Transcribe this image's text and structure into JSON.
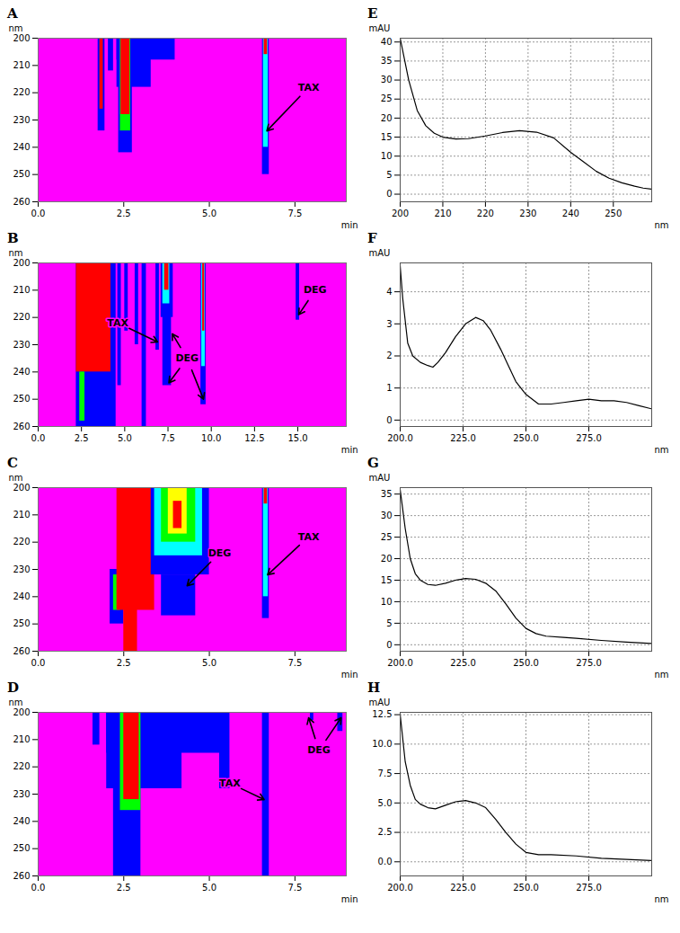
{
  "chart_data": [
    {
      "title": "A",
      "type": "heatmap",
      "xlabel": "min",
      "ylabel": "nm",
      "xlim": [
        0,
        9
      ],
      "ylim": [
        200,
        260
      ],
      "xticks": [
        {
          "value": 0,
          "label": "0.0"
        },
        {
          "value": 2.5,
          "label": "2.5"
        },
        {
          "value": 5,
          "label": "5.0"
        },
        {
          "value": 7.5,
          "label": "7.5"
        }
      ],
      "yticks": [
        200,
        210,
        220,
        230,
        240,
        250,
        260
      ],
      "colors": [
        "#ff00ff",
        "#0000ff",
        "#00ffff",
        "#00ff00",
        "#ffff00",
        "#ff0000"
      ],
      "cells": [
        [
          1.75,
          1.95,
          200,
          234,
          1
        ],
        [
          1.8,
          1.9,
          200,
          226,
          5
        ],
        [
          2.05,
          2.2,
          200,
          212,
          1
        ],
        [
          2.3,
          4.0,
          200,
          208,
          1
        ],
        [
          2.3,
          3.3,
          200,
          218,
          1
        ],
        [
          2.35,
          2.75,
          200,
          242,
          1
        ],
        [
          2.4,
          2.7,
          200,
          234,
          3
        ],
        [
          2.42,
          2.68,
          200,
          228,
          5
        ],
        [
          6.55,
          6.75,
          200,
          250,
          1
        ],
        [
          6.58,
          6.72,
          200,
          240,
          2
        ],
        [
          6.6,
          6.7,
          200,
          206,
          5
        ]
      ],
      "annotations": [
        {
          "text": "TAX",
          "x": 7.9,
          "y": 218,
          "to": [
            [
              6.68,
              234
            ]
          ]
        }
      ]
    },
    {
      "title": "B",
      "type": "heatmap",
      "xlabel": "min",
      "ylabel": "nm",
      "xlim": [
        0,
        17.8
      ],
      "ylim": [
        200,
        260
      ],
      "xticks": [
        {
          "value": 0,
          "label": "0.0"
        },
        {
          "value": 2.5,
          "label": "2.5"
        },
        {
          "value": 5,
          "label": "5.0"
        },
        {
          "value": 7.5,
          "label": "7.5"
        },
        {
          "value": 10,
          "label": "10.0"
        },
        {
          "value": 12.5,
          "label": "12.5"
        },
        {
          "value": 15,
          "label": "15.0"
        }
      ],
      "yticks": [
        200,
        210,
        220,
        230,
        240,
        250,
        260
      ],
      "colors": [
        "#ff00ff",
        "#0000ff",
        "#00ffff",
        "#00ff00",
        "#ffff00",
        "#ff0000"
      ],
      "cells": [
        [
          2.2,
          4.5,
          200,
          260,
          1
        ],
        [
          2.2,
          4.2,
          200,
          240,
          5
        ],
        [
          2.4,
          2.7,
          240,
          258,
          3
        ],
        [
          4.6,
          4.8,
          200,
          245,
          1
        ],
        [
          5.0,
          5.2,
          200,
          225,
          1
        ],
        [
          5.6,
          5.8,
          200,
          230,
          1
        ],
        [
          6.0,
          6.25,
          200,
          260,
          1
        ],
        [
          6.8,
          7.0,
          200,
          232,
          1
        ],
        [
          7.1,
          7.8,
          200,
          220,
          1
        ],
        [
          7.2,
          7.7,
          200,
          245,
          1
        ],
        [
          7.2,
          7.6,
          200,
          215,
          2
        ],
        [
          7.3,
          7.55,
          200,
          210,
          5
        ],
        [
          9.4,
          9.7,
          200,
          252,
          1
        ],
        [
          9.45,
          9.65,
          200,
          238,
          2
        ],
        [
          9.5,
          9.62,
          200,
          225,
          5
        ],
        [
          14.9,
          15.1,
          200,
          221,
          1
        ]
      ],
      "annotations": [
        {
          "text": "TAX",
          "x": 4.6,
          "y": 222,
          "to": [
            [
              6.9,
              229
            ]
          ]
        },
        {
          "text": "DEG",
          "x": 8.6,
          "y": 235,
          "to": [
            [
              7.55,
              244
            ],
            [
              7.75,
              226
            ],
            [
              9.55,
              250
            ]
          ]
        },
        {
          "text": "DEG",
          "x": 16.0,
          "y": 210,
          "to": [
            [
              15.05,
              219
            ]
          ]
        }
      ]
    },
    {
      "title": "C",
      "type": "heatmap",
      "xlabel": "min",
      "ylabel": "nm",
      "xlim": [
        0,
        9
      ],
      "ylim": [
        200,
        260
      ],
      "xticks": [
        {
          "value": 0,
          "label": "0.0"
        },
        {
          "value": 2.5,
          "label": "2.5"
        },
        {
          "value": 5,
          "label": "5.0"
        },
        {
          "value": 7.5,
          "label": "7.5"
        }
      ],
      "yticks": [
        200,
        210,
        220,
        230,
        240,
        250,
        260
      ],
      "colors": [
        "#ff00ff",
        "#0000ff",
        "#00ffff",
        "#00ff00",
        "#ffff00",
        "#ff0000"
      ],
      "cells": [
        [
          2.1,
          2.5,
          230,
          250,
          1
        ],
        [
          2.2,
          2.4,
          232,
          245,
          3
        ],
        [
          2.3,
          3.4,
          200,
          245,
          5
        ],
        [
          2.5,
          2.9,
          200,
          260,
          5
        ],
        [
          3.3,
          5.0,
          200,
          232,
          1
        ],
        [
          3.6,
          4.6,
          232,
          247,
          1
        ],
        [
          3.4,
          4.8,
          200,
          225,
          2
        ],
        [
          3.6,
          4.6,
          200,
          220,
          3
        ],
        [
          3.8,
          4.35,
          200,
          217,
          4
        ],
        [
          3.95,
          4.2,
          205,
          215,
          5
        ],
        [
          6.55,
          6.75,
          200,
          248,
          1
        ],
        [
          6.58,
          6.72,
          200,
          240,
          2
        ],
        [
          6.6,
          6.7,
          200,
          206,
          5
        ]
      ],
      "annotations": [
        {
          "text": "DEG",
          "x": 5.3,
          "y": 224,
          "to": [
            [
              4.35,
              236
            ]
          ]
        },
        {
          "text": "TAX",
          "x": 7.9,
          "y": 218,
          "to": [
            [
              6.7,
              232
            ]
          ]
        }
      ]
    },
    {
      "title": "D",
      "type": "heatmap",
      "xlabel": "min",
      "ylabel": "nm",
      "xlim": [
        0,
        9
      ],
      "ylim": [
        200,
        260
      ],
      "xticks": [
        {
          "value": 0,
          "label": "0.0"
        },
        {
          "value": 2.5,
          "label": "2.5"
        },
        {
          "value": 5,
          "label": "5.0"
        },
        {
          "value": 7.5,
          "label": "7.5"
        }
      ],
      "yticks": [
        200,
        210,
        220,
        230,
        240,
        250,
        260
      ],
      "colors": [
        "#ff00ff",
        "#0000ff",
        "#00ffff",
        "#00ff00",
        "#ffff00",
        "#ff0000"
      ],
      "cells": [
        [
          1.6,
          1.8,
          200,
          212,
          1
        ],
        [
          2.0,
          5.5,
          200,
          215,
          1
        ],
        [
          2.0,
          4.2,
          200,
          228,
          1
        ],
        [
          2.2,
          3.0,
          200,
          260,
          1
        ],
        [
          2.4,
          3.0,
          200,
          236,
          3
        ],
        [
          2.5,
          2.95,
          200,
          232,
          5
        ],
        [
          5.3,
          5.6,
          200,
          228,
          1
        ],
        [
          6.55,
          6.75,
          200,
          260,
          1
        ],
        [
          7.95,
          8.05,
          200,
          203,
          1
        ],
        [
          8.75,
          8.9,
          200,
          207,
          1
        ]
      ],
      "annotations": [
        {
          "text": "TAX",
          "x": 5.6,
          "y": 226,
          "to": [
            [
              6.6,
              232
            ]
          ]
        },
        {
          "text": "DEG",
          "x": 8.2,
          "y": 214,
          "to": [
            [
              7.9,
              202
            ],
            [
              8.85,
              202
            ]
          ]
        }
      ]
    },
    {
      "title": "E",
      "type": "line",
      "xlabel": "nm",
      "ylabel": "mAU",
      "color": "#000000",
      "grid": true,
      "xlim": [
        200,
        259
      ],
      "ylim": [
        -2,
        41
      ],
      "xticks": [
        200,
        210,
        220,
        230,
        240,
        250
      ],
      "yticks": [
        0,
        5,
        10,
        15,
        20,
        25,
        30,
        35,
        40
      ],
      "x": [
        200,
        202,
        204,
        206,
        208,
        210,
        213,
        216,
        220,
        224,
        228,
        232,
        236,
        240,
        243,
        246,
        249,
        252,
        255,
        257,
        259
      ],
      "values": [
        41,
        30,
        22,
        18,
        16,
        15,
        14.5,
        14.6,
        15.3,
        16.2,
        16.7,
        16.3,
        14.8,
        11,
        8.5,
        6,
        4.2,
        3,
        2.1,
        1.6,
        1.3
      ]
    },
    {
      "title": "F",
      "type": "line",
      "xlabel": "nm",
      "ylabel": "mAU",
      "color": "#000000",
      "grid": true,
      "xlim": [
        200,
        300
      ],
      "ylim": [
        -0.2,
        4.9
      ],
      "xticks": [
        {
          "value": 200,
          "label": "200.0"
        },
        {
          "value": 225,
          "label": "225.0"
        },
        {
          "value": 250,
          "label": "250.0"
        },
        {
          "value": 275,
          "label": "275.0"
        }
      ],
      "yticks": [
        0,
        1,
        2,
        3,
        4
      ],
      "x": [
        200,
        201,
        203,
        205,
        208,
        211,
        213,
        215,
        218,
        222,
        226,
        230,
        233,
        236,
        240,
        243,
        246,
        250,
        255,
        260,
        265,
        270,
        275,
        280,
        285,
        290,
        295,
        300
      ],
      "values": [
        4.8,
        3.8,
        2.4,
        2.0,
        1.8,
        1.7,
        1.65,
        1.8,
        2.1,
        2.6,
        3.0,
        3.2,
        3.1,
        2.8,
        2.2,
        1.7,
        1.2,
        0.8,
        0.5,
        0.5,
        0.55,
        0.6,
        0.65,
        0.6,
        0.6,
        0.55,
        0.45,
        0.35
      ]
    },
    {
      "title": "G",
      "type": "line",
      "xlabel": "nm",
      "ylabel": "mAU",
      "color": "#000000",
      "grid": true,
      "xlim": [
        200,
        300
      ],
      "ylim": [
        -1.5,
        36.5
      ],
      "xticks": [
        {
          "value": 200,
          "label": "200.0"
        },
        {
          "value": 225,
          "label": "225.0"
        },
        {
          "value": 250,
          "label": "250.0"
        },
        {
          "value": 275,
          "label": "275.0"
        }
      ],
      "yticks": [
        0,
        5,
        10,
        15,
        20,
        25,
        30,
        35
      ],
      "x": [
        200,
        202,
        204,
        206,
        208,
        211,
        214,
        218,
        222,
        226,
        230,
        234,
        238,
        242,
        246,
        250,
        254,
        258,
        265,
        270,
        280,
        290,
        300
      ],
      "values": [
        36,
        27,
        20,
        16.5,
        15,
        14,
        13.8,
        14.3,
        15,
        15.4,
        15.2,
        14.3,
        12.5,
        9.5,
        6.2,
        3.8,
        2.6,
        2,
        1.7,
        1.5,
        1,
        0.6,
        0.3
      ]
    },
    {
      "title": "H",
      "type": "line",
      "xlabel": "nm",
      "ylabel": "mAU",
      "color": "#000000",
      "grid": true,
      "xlim": [
        200,
        300
      ],
      "ylim": [
        -1.2,
        12.7
      ],
      "xticks": [
        {
          "value": 200,
          "label": "200.0"
        },
        {
          "value": 225,
          "label": "225.0"
        },
        {
          "value": 250,
          "label": "250.0"
        },
        {
          "value": 275,
          "label": "275.0"
        }
      ],
      "yticks": [
        {
          "value": 0,
          "label": "0.0"
        },
        {
          "value": 2.5,
          "label": "2.5"
        },
        {
          "value": 5,
          "label": "5.0"
        },
        {
          "value": 7.5,
          "label": "7.5"
        },
        {
          "value": 10,
          "label": "10.0"
        },
        {
          "value": 12.5,
          "label": "12.5"
        }
      ],
      "x": [
        200,
        202,
        204,
        206,
        208,
        211,
        214,
        218,
        222,
        226,
        230,
        234,
        238,
        242,
        246,
        250,
        255,
        260,
        270,
        280,
        290,
        300
      ],
      "values": [
        12.5,
        8.5,
        6.5,
        5.3,
        4.9,
        4.6,
        4.5,
        4.8,
        5.1,
        5.2,
        5.0,
        4.6,
        3.6,
        2.5,
        1.5,
        0.8,
        0.6,
        0.6,
        0.5,
        0.3,
        0.2,
        0.1
      ]
    }
  ]
}
